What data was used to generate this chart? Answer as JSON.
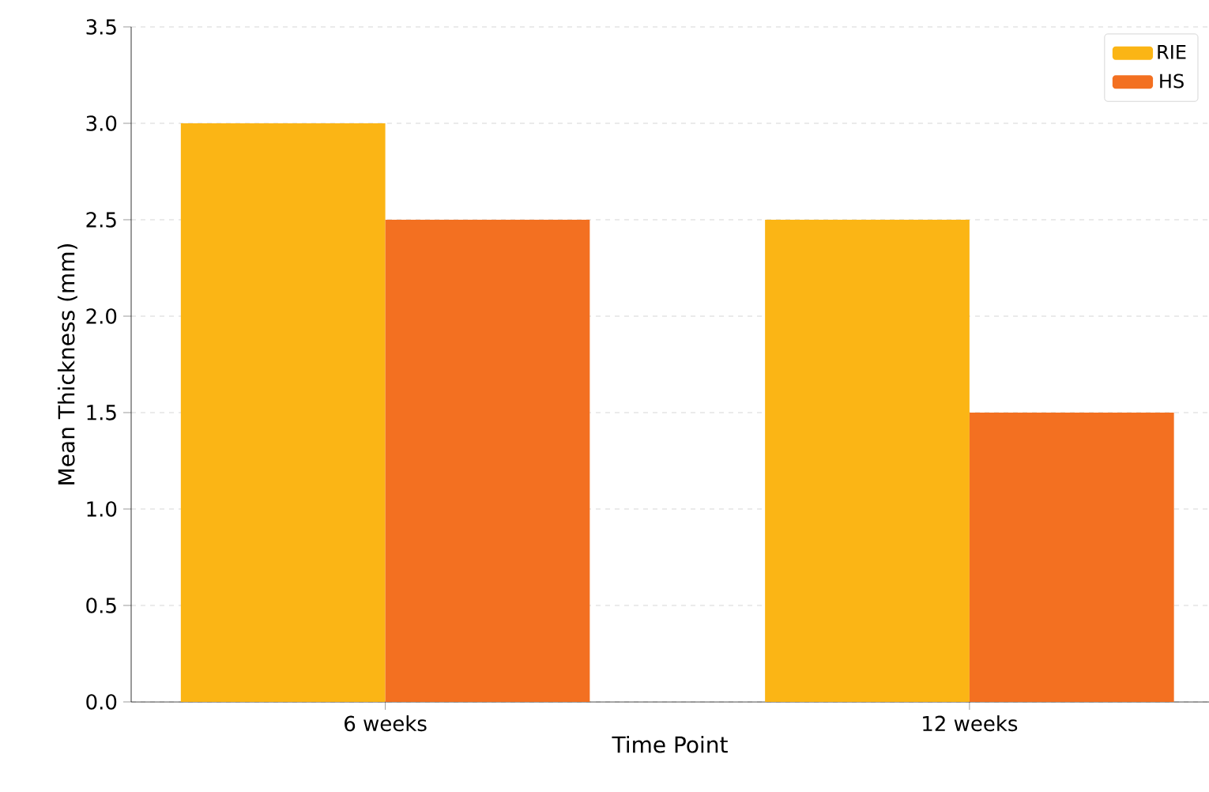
{
  "chart_data": {
    "type": "bar",
    "xlabel": "Time Point",
    "ylabel": "Mean Thickness (mm)",
    "categories": [
      "6 weeks",
      "12 weeks"
    ],
    "series": [
      {
        "name": "RIE",
        "color": "#fbb515",
        "values": [
          3.0,
          2.5
        ]
      },
      {
        "name": "HS",
        "color": "#f37021",
        "values": [
          2.5,
          1.5
        ]
      }
    ],
    "ylim": [
      0,
      3.5
    ],
    "yticks": [
      {
        "value": 0,
        "label": "0.0"
      },
      {
        "value": 0.5,
        "label": "0.5"
      },
      {
        "value": 1,
        "label": "1.0"
      },
      {
        "value": 1.5,
        "label": "1.5"
      },
      {
        "value": 2,
        "label": "2.0"
      },
      {
        "value": 2.5,
        "label": "2.5"
      },
      {
        "value": 3,
        "label": "3.0"
      },
      {
        "value": 3.5,
        "label": "3.5"
      }
    ],
    "grid": "y",
    "legend": "top right"
  }
}
